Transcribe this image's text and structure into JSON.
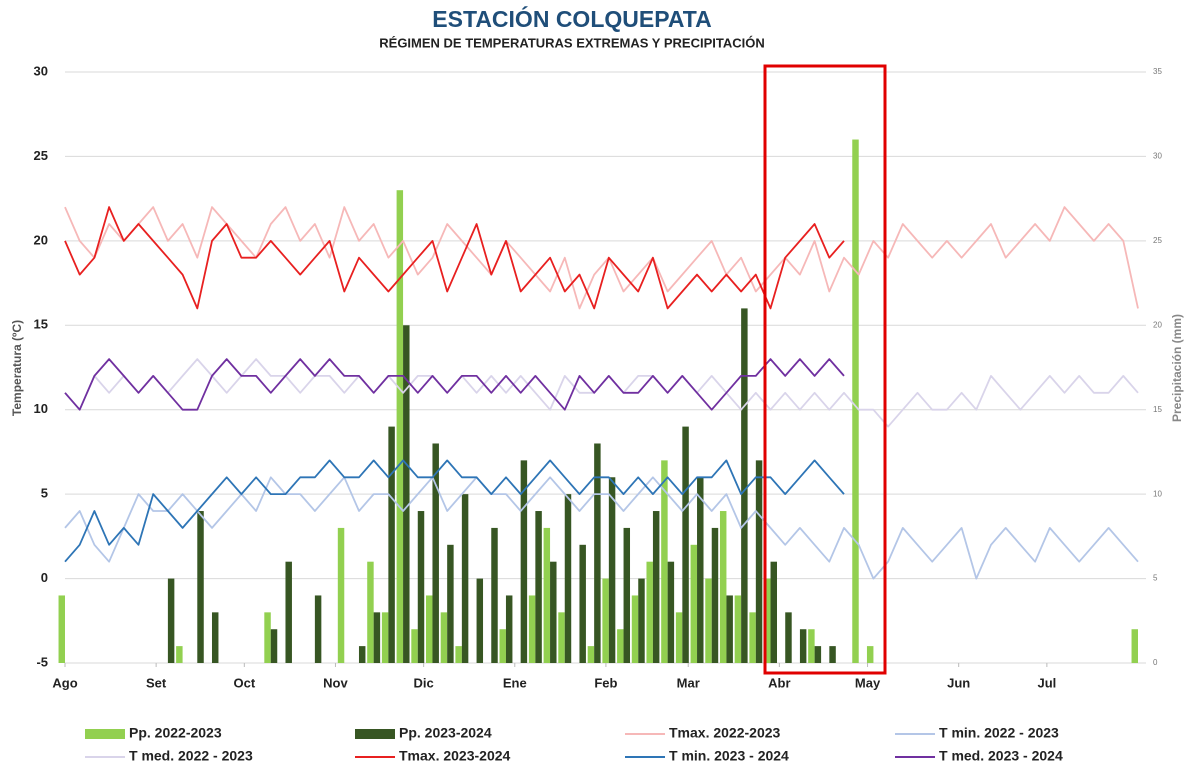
{
  "chart_data": {
    "type": "line",
    "title": "ESTACIÓN COLQUEPATA",
    "subtitle": "RÉGIMEN DE TEMPERATURAS EXTREMAS Y PRECIPITACIÓN",
    "y_label": "Temperatura (ºC)",
    "y2_label": "Precipitación (mm)",
    "xlim": [
      0,
      365
    ],
    "xticks": [
      {
        "value": 0,
        "label": "Ago"
      },
      {
        "value": 31,
        "label": "Set"
      },
      {
        "value": 61,
        "label": "Oct"
      },
      {
        "value": 92,
        "label": "Nov"
      },
      {
        "value": 122,
        "label": "Dic"
      },
      {
        "value": 153,
        "label": "Ene"
      },
      {
        "value": 184,
        "label": "Feb"
      },
      {
        "value": 212,
        "label": "Mar"
      },
      {
        "value": 243,
        "label": "Abr"
      },
      {
        "value": 273,
        "label": "May"
      },
      {
        "value": 304,
        "label": "Jun"
      },
      {
        "value": 334,
        "label": "Jul"
      }
    ],
    "ylim": [
      -5,
      30
    ],
    "yticks": [
      -5,
      0,
      5,
      10,
      15,
      20,
      25,
      30
    ],
    "y2lim": [
      0,
      35
    ],
    "y2ticks": [
      0,
      5,
      10,
      15,
      20,
      25,
      30,
      35
    ],
    "grid": true,
    "x": [
      0,
      5,
      10,
      15,
      20,
      25,
      30,
      35,
      40,
      45,
      50,
      55,
      60,
      65,
      70,
      75,
      80,
      85,
      90,
      95,
      100,
      105,
      110,
      115,
      120,
      125,
      130,
      135,
      140,
      145,
      150,
      155,
      160,
      165,
      170,
      175,
      180,
      185,
      190,
      195,
      200,
      205,
      210,
      215,
      220,
      225,
      230,
      235,
      240,
      245,
      250,
      255,
      260,
      265,
      270,
      275,
      280,
      285,
      290,
      295,
      300,
      305,
      310,
      315,
      320,
      325,
      330,
      335,
      340,
      345,
      350,
      355,
      360,
      365
    ],
    "series": [
      {
        "name": "Pp. 2022-2023",
        "type": "bar",
        "axis": "y2",
        "color": "#92d050",
        "values": [
          4,
          0,
          0,
          0,
          0,
          0,
          0,
          0,
          1,
          0,
          0,
          0,
          0,
          0,
          3,
          0,
          0,
          0,
          0,
          8,
          0,
          6,
          3,
          28,
          2,
          4,
          3,
          1,
          0,
          0,
          2,
          0,
          4,
          8,
          3,
          0,
          1,
          5,
          2,
          4,
          6,
          12,
          3,
          7,
          5,
          9,
          4,
          3,
          5,
          0,
          0,
          2,
          0,
          0,
          31,
          1,
          0,
          0,
          0,
          0,
          0,
          0,
          0,
          0,
          0,
          0,
          0,
          0,
          0,
          0,
          0,
          0,
          0,
          2
        ]
      },
      {
        "name": "Pp. 2023-2024",
        "type": "bar",
        "axis": "y2",
        "color": "#375623",
        "values": [
          0,
          0,
          0,
          0,
          0,
          0,
          0,
          5,
          0,
          9,
          3,
          0,
          0,
          0,
          2,
          6,
          0,
          4,
          0,
          0,
          1,
          3,
          14,
          20,
          9,
          13,
          7,
          10,
          5,
          8,
          4,
          12,
          9,
          6,
          10,
          7,
          13,
          11,
          8,
          5,
          9,
          6,
          14,
          11,
          8,
          4,
          21,
          12,
          6,
          3,
          2,
          1,
          1,
          0,
          null,
          null,
          null,
          null,
          null,
          null,
          null,
          null,
          null,
          null,
          null,
          null,
          null,
          null,
          null,
          null,
          null,
          null,
          null,
          null
        ]
      },
      {
        "name": "Tmax. 2022-2023",
        "color": "#f6b8b8",
        "values": [
          22,
          20,
          19,
          21,
          20,
          21,
          22,
          20,
          21,
          19,
          22,
          21,
          20,
          19,
          21,
          22,
          20,
          21,
          19,
          22,
          20,
          21,
          19,
          20,
          18,
          19,
          21,
          20,
          19,
          18,
          20,
          19,
          18,
          17,
          19,
          16,
          18,
          19,
          17,
          18,
          19,
          17,
          18,
          19,
          20,
          18,
          19,
          17,
          18,
          19,
          18,
          20,
          17,
          19,
          18,
          20,
          19,
          21,
          20,
          19,
          20,
          19,
          20,
          21,
          19,
          20,
          21,
          20,
          22,
          21,
          20,
          21,
          20,
          16
        ]
      },
      {
        "name": "T min. 2022 - 2023",
        "color": "#b4c6e7",
        "values": [
          3,
          4,
          2,
          1,
          3,
          5,
          4,
          4,
          5,
          4,
          3,
          4,
          5,
          4,
          6,
          5,
          5,
          4,
          5,
          6,
          4,
          5,
          5,
          4,
          5,
          6,
          4,
          5,
          6,
          5,
          5,
          4,
          5,
          6,
          5,
          4,
          5,
          5,
          4,
          5,
          6,
          5,
          4,
          5,
          4,
          5,
          3,
          4,
          3,
          2,
          3,
          2,
          1,
          3,
          2,
          0,
          1,
          3,
          2,
          1,
          2,
          3,
          0,
          2,
          3,
          2,
          1,
          3,
          2,
          1,
          2,
          3,
          2,
          1
        ]
      },
      {
        "name": "T med. 2022 - 2023",
        "color": "#d9d4ea",
        "values": [
          11,
          10,
          12,
          11,
          12,
          11,
          12,
          11,
          12,
          13,
          12,
          11,
          12,
          13,
          12,
          12,
          11,
          12,
          12,
          11,
          12,
          11,
          12,
          11,
          12,
          12,
          11,
          12,
          11,
          12,
          11,
          12,
          11,
          10,
          12,
          11,
          11,
          12,
          11,
          12,
          12,
          11,
          12,
          11,
          12,
          11,
          10,
          11,
          10,
          11,
          10,
          11,
          10,
          11,
          10,
          10,
          9,
          10,
          11,
          10,
          10,
          11,
          10,
          12,
          11,
          10,
          11,
          12,
          11,
          12,
          11,
          11,
          12,
          11
        ]
      },
      {
        "name": "Tmax. 2023-2024",
        "color": "#e82020",
        "values": [
          20,
          18,
          19,
          22,
          20,
          21,
          20,
          19,
          18,
          16,
          20,
          21,
          19,
          19,
          20,
          19,
          18,
          19,
          20,
          17,
          19,
          18,
          17,
          18,
          19,
          20,
          17,
          19,
          21,
          18,
          20,
          17,
          18,
          19,
          17,
          18,
          16,
          19,
          18,
          17,
          19,
          16,
          17,
          18,
          17,
          18,
          17,
          18,
          16,
          19,
          20,
          21,
          19,
          20,
          null,
          null,
          null,
          null,
          null,
          null,
          null,
          null,
          null,
          null,
          null,
          null,
          null,
          null,
          null,
          null,
          null,
          null,
          null,
          null
        ]
      },
      {
        "name": "T min. 2023 - 2024",
        "color": "#2e75b6",
        "values": [
          1,
          2,
          4,
          2,
          3,
          2,
          5,
          4,
          3,
          4,
          5,
          6,
          5,
          6,
          5,
          5,
          6,
          6,
          7,
          6,
          6,
          7,
          6,
          7,
          6,
          6,
          7,
          6,
          6,
          5,
          6,
          5,
          6,
          7,
          6,
          5,
          6,
          6,
          5,
          6,
          5,
          6,
          5,
          6,
          6,
          7,
          5,
          6,
          6,
          5,
          6,
          7,
          6,
          5,
          null,
          null,
          null,
          null,
          null,
          null,
          null,
          null,
          null,
          null,
          null,
          null,
          null,
          null,
          null,
          null,
          null,
          null,
          null,
          null
        ]
      },
      {
        "name": "T med. 2023 - 2024",
        "color": "#7030a0",
        "values": [
          11,
          10,
          12,
          13,
          12,
          11,
          12,
          11,
          10,
          10,
          12,
          13,
          12,
          12,
          11,
          12,
          13,
          12,
          13,
          12,
          12,
          11,
          12,
          12,
          11,
          12,
          11,
          12,
          12,
          11,
          12,
          11,
          12,
          11,
          10,
          12,
          11,
          12,
          11,
          11,
          12,
          11,
          12,
          11,
          10,
          11,
          12,
          12,
          13,
          12,
          13,
          12,
          13,
          12,
          null,
          null,
          null,
          null,
          null,
          null,
          null,
          null,
          null,
          null,
          null,
          null,
          null,
          null,
          null,
          null,
          null,
          null,
          null,
          null
        ]
      }
    ]
  }
}
